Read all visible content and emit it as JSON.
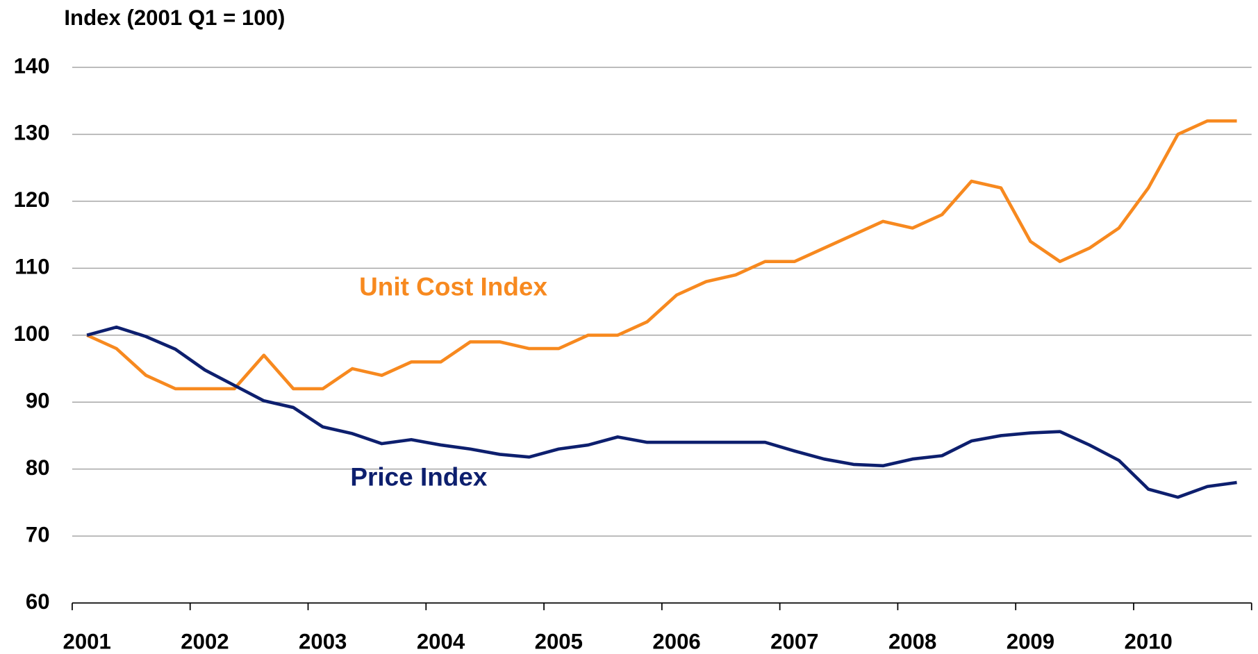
{
  "chart_data": {
    "type": "line",
    "y_axis_label": "Index (2001 Q1 = 100)",
    "categories": [
      "2001",
      null,
      null,
      null,
      "2002",
      null,
      null,
      null,
      "2003",
      null,
      null,
      null,
      "2004",
      null,
      null,
      null,
      "2005",
      null,
      null,
      null,
      "2006",
      null,
      null,
      null,
      "2007",
      null,
      null,
      null,
      "2008",
      null,
      null,
      null,
      "2009",
      null,
      null,
      null,
      "2010",
      null,
      null,
      null
    ],
    "series": [
      {
        "name": "Unit Cost Index",
        "color": "#f7891f",
        "values": [
          100,
          98,
          94,
          92,
          92,
          92,
          97,
          92,
          92,
          95,
          94,
          96,
          96,
          99,
          99,
          98,
          98,
          100,
          100,
          102,
          106,
          108,
          109,
          111,
          111,
          113,
          115,
          117,
          116,
          118,
          123,
          122,
          114,
          111,
          113,
          116,
          122,
          130,
          132,
          132
        ]
      },
      {
        "name": "Price Index",
        "color": "#0d1f6e",
        "values": [
          100,
          101.2,
          99.8,
          97.9,
          94.8,
          92.5,
          90.2,
          89.2,
          86.3,
          85.3,
          83.8,
          84.4,
          83.6,
          83,
          82.2,
          81.8,
          83,
          83.6,
          84.8,
          84,
          84,
          84,
          84,
          84,
          82.7,
          81.5,
          80.7,
          80.5,
          81.5,
          82,
          84.2,
          85,
          85.4,
          85.6,
          83.6,
          81.3,
          77,
          75.8,
          77.4,
          78
        ]
      }
    ],
    "ylim": [
      60,
      140
    ],
    "yticks": [
      60,
      70,
      80,
      90,
      100,
      110,
      120,
      130,
      140
    ],
    "grid": true
  }
}
